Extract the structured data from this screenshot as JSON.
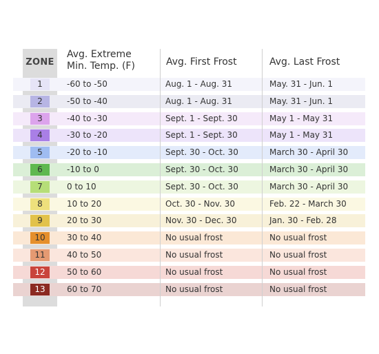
{
  "headers": {
    "zone": "ZONE",
    "temp_line1": "Avg. Extreme",
    "temp_line2": "Min. Temp. (F)",
    "first_frost": "Avg. First Frost",
    "last_frost": "Avg. Last Frost"
  },
  "rows": [
    {
      "zone": "1",
      "temp": "-60 to -50",
      "first": "Aug. 1 - Aug. 31",
      "last": "May. 31 - Jun. 1",
      "chip": "#e6e4f7",
      "chip_text": "#333333",
      "row_bg": "#f4f4fb"
    },
    {
      "zone": "2",
      "temp": "-50 to -40",
      "first": "Aug. 1 - Aug. 31",
      "last": "May. 31 - Jun. 1",
      "chip": "#b7b5e4",
      "chip_text": "#333333",
      "row_bg": "#ebebf3"
    },
    {
      "zone": "3",
      "temp": "-40 to -30",
      "first": "Sept. 1 - Sept. 30",
      "last": "May 1 - May 31",
      "chip": "#dca4ec",
      "chip_text": "#333333",
      "row_bg": "#f5eafa"
    },
    {
      "zone": "4",
      "temp": "-30 to -20",
      "first": "Sept. 1 - Sept. 30",
      "last": "May 1 - May 31",
      "chip": "#a97fe6",
      "chip_text": "#333333",
      "row_bg": "#ede4fa"
    },
    {
      "zone": "5",
      "temp": "-20 to -10",
      "first": "Sept. 30 - Oct. 30",
      "last": "March 30 - April 30",
      "chip": "#9fbcf1",
      "chip_text": "#333333",
      "row_bg": "#e3ebfb"
    },
    {
      "zone": "6",
      "temp": "-10 to 0",
      "first": "Sept. 30 - Oct. 30",
      "last": "March 30 - April 30",
      "chip": "#5fb84f",
      "chip_text": "#333333",
      "row_bg": "#dbefd7"
    },
    {
      "zone": "7",
      "temp": "0 to 10",
      "first": "Sept. 30 - Oct. 30",
      "last": "March 30 - April 30",
      "chip": "#b6de78",
      "chip_text": "#333333",
      "row_bg": "#edf6e0"
    },
    {
      "zone": "8",
      "temp": "10 to 20",
      "first": "Oct. 30 - Nov. 30",
      "last": "Feb. 22 - March 30",
      "chip": "#eee07c",
      "chip_text": "#333333",
      "row_bg": "#fbf8e2"
    },
    {
      "zone": "9",
      "temp": "20 to 30",
      "first": "Nov. 30 - Dec. 30",
      "last": "Jan. 30 - Feb. 28",
      "chip": "#e2c24b",
      "chip_text": "#333333",
      "row_bg": "#f8f1d9"
    },
    {
      "zone": "10",
      "temp": "30 to 40",
      "first": "No usual frost",
      "last": "No usual frost",
      "chip": "#e58f2c",
      "chip_text": "#333333",
      "row_bg": "#fbe8d6"
    },
    {
      "zone": "11",
      "temp": "40 to 50",
      "first": "No usual frost",
      "last": "No usual frost",
      "chip": "#e59a72",
      "chip_text": "#333333",
      "row_bg": "#fbe6dd"
    },
    {
      "zone": "12",
      "temp": "50 to 60",
      "first": "No usual frost",
      "last": "No usual frost",
      "chip": "#c9453c",
      "chip_text": "#ffffff",
      "row_bg": "#f6d9d6"
    },
    {
      "zone": "13",
      "temp": "60 to 70",
      "first": "No usual frost",
      "last": "No usual frost",
      "chip": "#8b2a22",
      "chip_text": "#ffffff",
      "row_bg": "#ead3d1"
    }
  ]
}
